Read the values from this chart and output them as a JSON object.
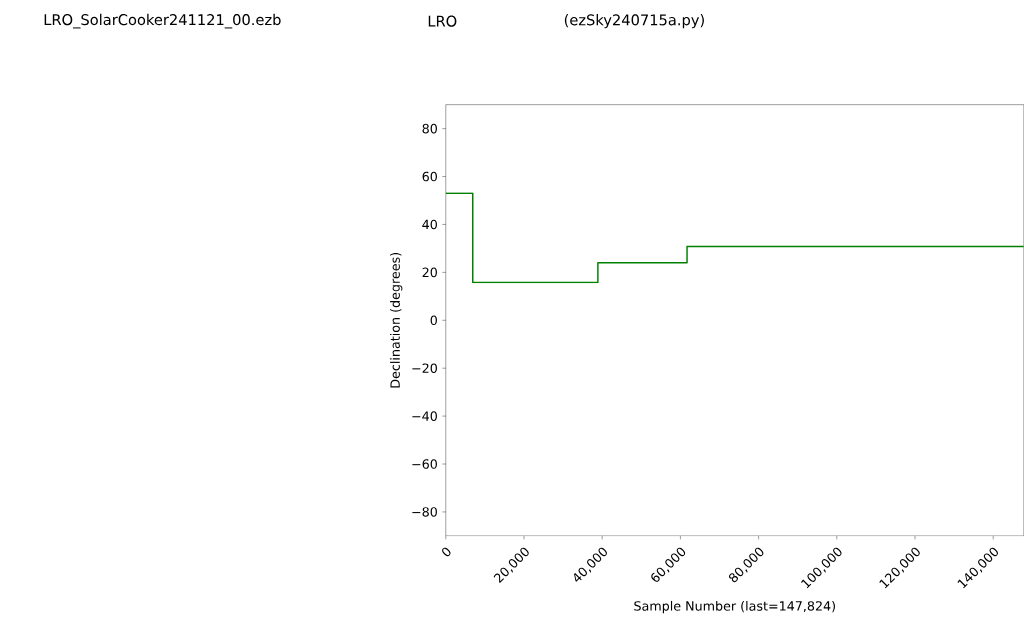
{
  "chart_data": {
    "type": "step",
    "title": "LRO_SolarCooker241121_00.ezb",
    "annotations": [
      "LRO",
      "(ezSky240715a.py)"
    ],
    "xlabel": "Sample Number (last=147,824)",
    "ylabel": "Declination (degrees)",
    "x": [
      0,
      6900,
      38900,
      61700,
      147824
    ],
    "series": [
      {
        "color": "#008000",
        "values": [
          53,
          15.8,
          24,
          30.8,
          30.8
        ]
      }
    ],
    "xlim": [
      0,
      147824
    ],
    "ylim": [
      -90,
      90
    ],
    "xticks": [
      {
        "value": 0,
        "label": "0"
      },
      {
        "value": 20000,
        "label": "20,000"
      },
      {
        "value": 40000,
        "label": "40,000"
      },
      {
        "value": 60000,
        "label": "60,000"
      },
      {
        "value": 80000,
        "label": "80,000"
      },
      {
        "value": 100000,
        "label": "100,000"
      },
      {
        "value": 120000,
        "label": "120,000"
      },
      {
        "value": 140000,
        "label": "140,000"
      }
    ],
    "yticks": [
      {
        "value": -80,
        "label": "−80"
      },
      {
        "value": -60,
        "label": "−60"
      },
      {
        "value": -40,
        "label": "−40"
      },
      {
        "value": -20,
        "label": "−20"
      },
      0,
      20,
      40,
      60,
      80
    ],
    "marker": "none",
    "line_style": "solid"
  }
}
